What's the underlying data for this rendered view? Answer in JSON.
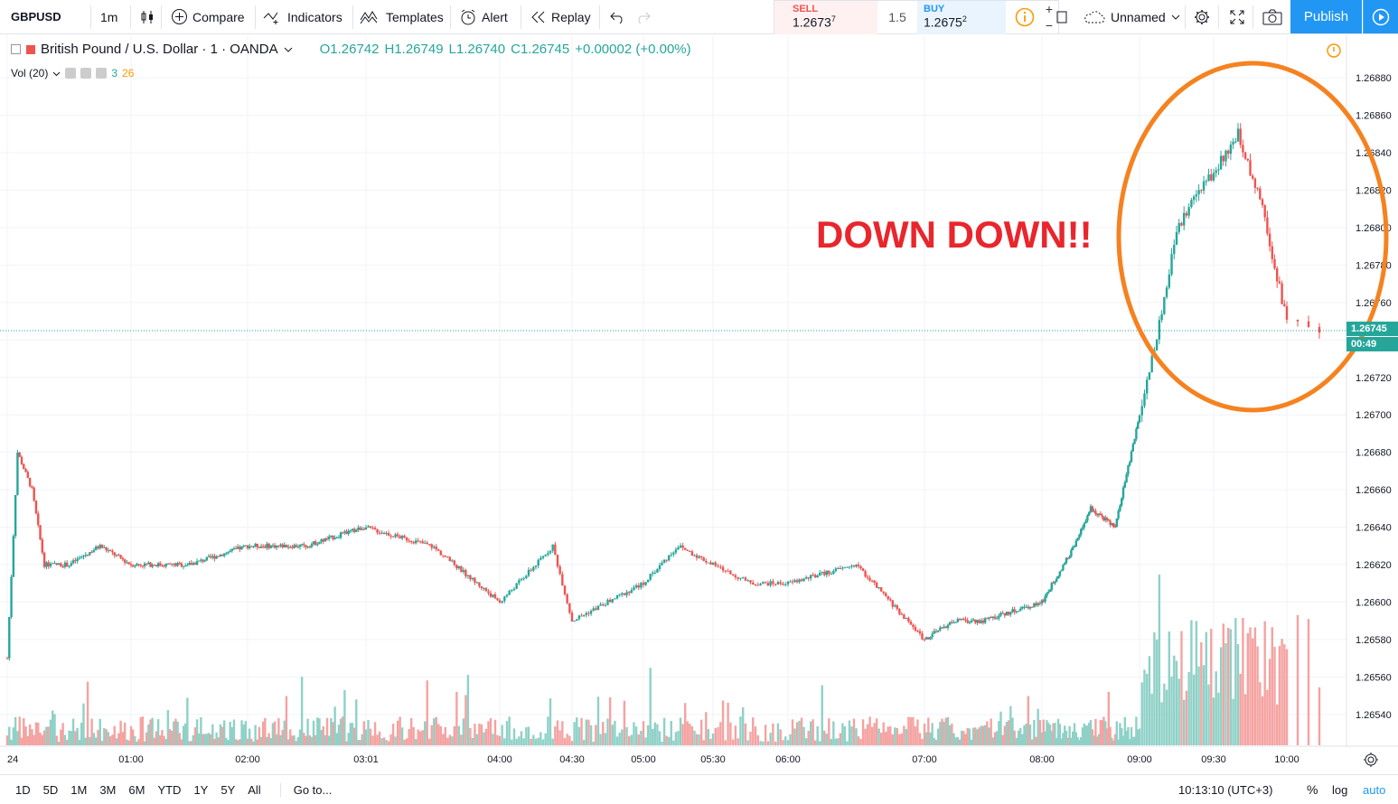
{
  "toolbar": {
    "symbol": "GBPUSD",
    "interval": "1m",
    "compare": "Compare",
    "indicators": "Indicators",
    "templates": "Templates",
    "alert": "Alert",
    "replay": "Replay",
    "layout_name": "Unnamed",
    "publish": "Publish"
  },
  "trade": {
    "sell_label": "SELL",
    "sell_price": "1.2673",
    "sell_pip": "7",
    "spread": "1.5",
    "buy_label": "BUY",
    "buy_price": "1.2675",
    "buy_pip": "2",
    "qty_plus": "+",
    "qty_minus": "−"
  },
  "legend": {
    "title": "British Pound / U.S. Dollar · 1 · OANDA",
    "open": "O1.26742",
    "high": "H1.26749",
    "low": "L1.26740",
    "close": "C1.26745",
    "change": "+0.00002 (+0.00%)",
    "vol_label": "Vol (20)",
    "vol_val1": "3",
    "vol_val2": "26"
  },
  "annotation": "DOWN DOWN!!",
  "price_badge": "1.26745",
  "countdown_badge": "00:49",
  "colors": {
    "up": "#26a69a",
    "down": "#ef5350",
    "vol_up": "#8fd1c7",
    "vol_down": "#f4a3a1",
    "annotation": "#e8262c",
    "circle": "#f58220",
    "accent": "#2196f3"
  },
  "chart_data": {
    "type": "candlestick",
    "title": "British Pound / U.S. Dollar · 1 · OANDA",
    "ylim": [
      1.26524,
      1.26896
    ],
    "y_ticks": [
      "1.26880",
      "1.26860",
      "1.26840",
      "1.26820",
      "1.26800",
      "1.26780",
      "1.26760",
      "1.26740",
      "1.26720",
      "1.26700",
      "1.26680",
      "1.26660",
      "1.26640",
      "1.26620",
      "1.26600",
      "1.26580",
      "1.26560",
      "1.26540"
    ],
    "x_ticks": [
      "24",
      "01:00",
      "02:00",
      "03:01",
      "04:00",
      "04:30",
      "05:00",
      "05:30",
      "06:00",
      "07:00",
      "08:00",
      "09:00",
      "09:30",
      "10:00"
    ],
    "price_path": [
      [
        "00:00",
        1.2657
      ],
      [
        "00:05",
        1.2668
      ],
      [
        "00:12",
        1.2666
      ],
      [
        "00:18",
        1.2662
      ],
      [
        "00:30",
        1.2662
      ],
      [
        "00:45",
        1.2663
      ],
      [
        "01:00",
        1.2662
      ],
      [
        "01:30",
        1.2662
      ],
      [
        "02:00",
        1.2663
      ],
      [
        "02:30",
        1.2663
      ],
      [
        "03:00",
        1.2664
      ],
      [
        "03:30",
        1.2663
      ],
      [
        "04:00",
        1.266
      ],
      [
        "04:15",
        1.2662
      ],
      [
        "04:22",
        1.2663
      ],
      [
        "04:30",
        1.2659
      ],
      [
        "05:00",
        1.2661
      ],
      [
        "05:15",
        1.2663
      ],
      [
        "05:30",
        1.2662
      ],
      [
        "05:45",
        1.2661
      ],
      [
        "06:00",
        1.2661
      ],
      [
        "06:30",
        1.2662
      ],
      [
        "07:00",
        1.2658
      ],
      [
        "07:15",
        1.2659
      ],
      [
        "07:30",
        1.2659
      ],
      [
        "08:00",
        1.266
      ],
      [
        "08:20",
        1.2663
      ],
      [
        "08:30",
        1.2665
      ],
      [
        "08:45",
        1.2664
      ],
      [
        "09:00",
        1.267
      ],
      [
        "09:10",
        1.2676
      ],
      [
        "09:15",
        1.268
      ],
      [
        "09:25",
        1.2682
      ],
      [
        "09:30",
        1.2683
      ],
      [
        "09:40",
        1.2685
      ],
      [
        "09:45",
        1.2683
      ],
      [
        "09:50",
        1.2681
      ],
      [
        "09:55",
        1.2678
      ],
      [
        "10:00",
        1.2675
      ],
      [
        "10:03",
        1.26745
      ]
    ],
    "current_price": 1.26745
  },
  "bottom": {
    "ranges": [
      "1D",
      "5D",
      "1M",
      "3M",
      "6M",
      "YTD",
      "1Y",
      "5Y",
      "All"
    ],
    "goto": "Go to...",
    "clock": "10:13:10 (UTC+3)",
    "percent": "%",
    "log": "log",
    "auto": "auto"
  }
}
